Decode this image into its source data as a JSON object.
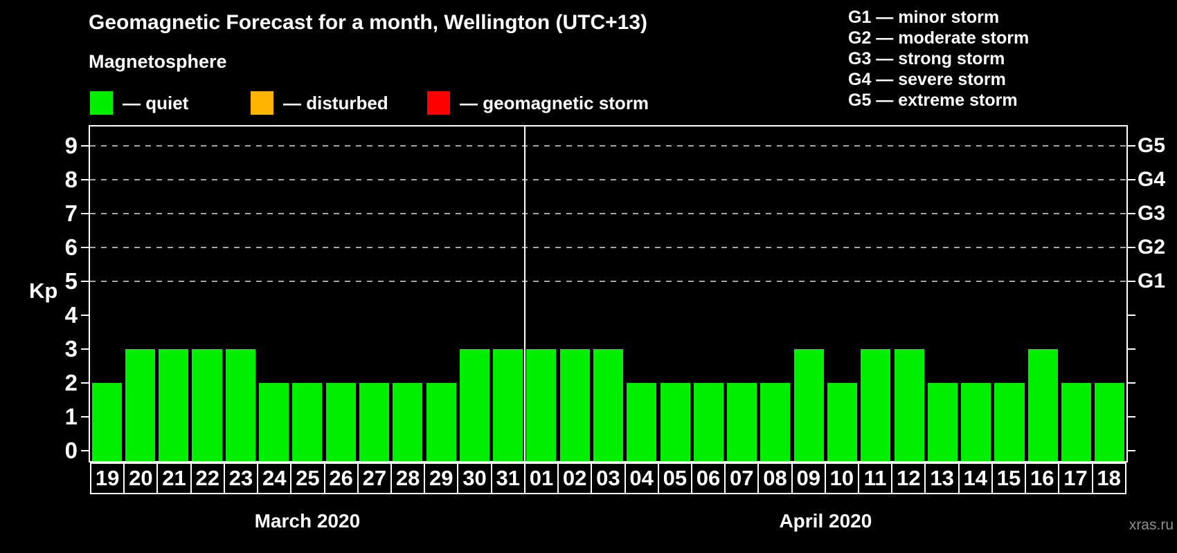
{
  "header": {
    "title": "Geomagnetic Forecast for a month, Wellington (UTC+13)"
  },
  "legend": {
    "label": "Magnetosphere",
    "items": [
      {
        "name": "quiet",
        "label": "— quiet",
        "color": "#00EE00"
      },
      {
        "name": "disturbed",
        "label": "— disturbed",
        "color": "#FFB400"
      },
      {
        "name": "geomagnetic-storm",
        "label": "— geomagnetic storm",
        "color": "#FF0000"
      }
    ]
  },
  "g_legend": {
    "items": [
      "G1 — minor storm",
      "G2 — moderate storm",
      "G3 — strong storm",
      "G4 — severe storm",
      "G5 — extreme storm"
    ]
  },
  "watermark": "xras.ru",
  "chart_data": {
    "type": "bar",
    "title": "Geomagnetic Forecast for a month, Wellington (UTC+13)",
    "ylabel": "Kp",
    "yticks": [
      0,
      1,
      2,
      3,
      4,
      5,
      6,
      7,
      8,
      9
    ],
    "ylim": [
      -0.31,
      9.57
    ],
    "grid": "horizontal dashed lines at Kp 5-9 only",
    "grid_levels": [
      5,
      6,
      7,
      8,
      9
    ],
    "right_axis": [
      {
        "label": "G1",
        "kp": 5
      },
      {
        "label": "G2",
        "kp": 6
      },
      {
        "label": "G3",
        "kp": 7
      },
      {
        "label": "G4",
        "kp": 8
      },
      {
        "label": "G5",
        "kp": 9
      }
    ],
    "bar_color": "#00EE00",
    "bar_status": "quiet",
    "months": [
      {
        "label": "March 2020",
        "categories": [
          "19",
          "20",
          "21",
          "22",
          "23",
          "24",
          "25",
          "26",
          "27",
          "28",
          "29",
          "30",
          "31"
        ],
        "values": [
          2,
          3,
          3,
          3,
          3,
          2,
          2,
          2,
          2,
          2,
          2,
          3,
          3
        ]
      },
      {
        "label": "April 2020",
        "categories": [
          "01",
          "02",
          "03",
          "04",
          "05",
          "06",
          "07",
          "08",
          "09",
          "10",
          "11",
          "12",
          "13",
          "14",
          "15",
          "16",
          "17",
          "18"
        ],
        "values": [
          3,
          3,
          3,
          2,
          2,
          2,
          2,
          2,
          3,
          2,
          3,
          3,
          2,
          2,
          2,
          3,
          2,
          2
        ]
      }
    ]
  }
}
